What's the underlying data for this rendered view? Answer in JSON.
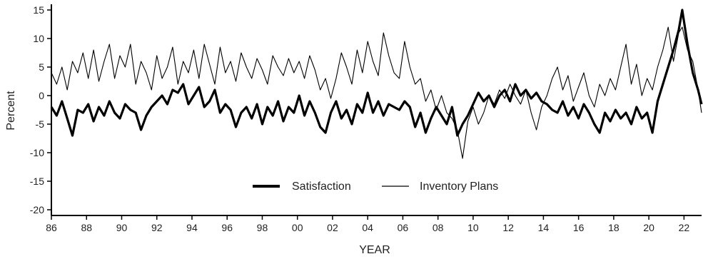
{
  "chart_data": {
    "type": "line",
    "title": "",
    "xlabel": "YEAR",
    "ylabel": "Percent",
    "xlim": [
      1986,
      2023
    ],
    "ylim": [
      -21,
      16
    ],
    "y_ticks": [
      15,
      10,
      5,
      0,
      -5,
      -10,
      -15,
      -20
    ],
    "y_tick_labels": [
      "15",
      "10",
      "5",
      "0",
      "-5",
      "-10",
      "-15",
      "-20"
    ],
    "x_ticks": [
      1986,
      1988,
      1990,
      1992,
      1994,
      1996,
      1998,
      2000,
      2002,
      2004,
      2006,
      2008,
      2010,
      2012,
      2014,
      2016,
      2018,
      2020,
      2022
    ],
    "x_tick_labels": [
      "86",
      "88",
      "90",
      "92",
      "94",
      "96",
      "98",
      "00",
      "02",
      "04",
      "06",
      "08",
      "10",
      "12",
      "14",
      "16",
      "18",
      "20",
      "22"
    ],
    "grid": false,
    "legend_position": "bottom-center",
    "series": [
      {
        "name": "Satisfaction",
        "color": "#000000",
        "style": "thick",
        "x": [
          1986.0,
          1986.3,
          1986.6,
          1986.9,
          1987.2,
          1987.5,
          1987.8,
          1988.1,
          1988.4,
          1988.7,
          1989.0,
          1989.3,
          1989.6,
          1989.9,
          1990.2,
          1990.5,
          1990.8,
          1991.1,
          1991.4,
          1991.7,
          1992.0,
          1992.3,
          1992.6,
          1992.9,
          1993.2,
          1993.5,
          1993.8,
          1994.1,
          1994.4,
          1994.7,
          1995.0,
          1995.3,
          1995.6,
          1995.9,
          1996.2,
          1996.5,
          1996.8,
          1997.1,
          1997.4,
          1997.7,
          1998.0,
          1998.3,
          1998.6,
          1998.9,
          1999.2,
          1999.5,
          1999.8,
          2000.1,
          2000.4,
          2000.7,
          2001.0,
          2001.3,
          2001.6,
          2001.9,
          2002.2,
          2002.5,
          2002.8,
          2003.1,
          2003.4,
          2003.7,
          2004.0,
          2004.3,
          2004.6,
          2004.9,
          2005.2,
          2005.5,
          2005.8,
          2006.1,
          2006.4,
          2006.7,
          2007.0,
          2007.3,
          2007.6,
          2007.9,
          2008.2,
          2008.5,
          2008.8,
          2009.1,
          2009.4,
          2009.7,
          2010.0,
          2010.3,
          2010.6,
          2010.9,
          2011.2,
          2011.5,
          2011.8,
          2012.1,
          2012.4,
          2012.7,
          2013.0,
          2013.3,
          2013.6,
          2013.9,
          2014.2,
          2014.5,
          2014.8,
          2015.1,
          2015.4,
          2015.7,
          2016.0,
          2016.3,
          2016.6,
          2016.9,
          2017.2,
          2017.5,
          2017.8,
          2018.1,
          2018.4,
          2018.7,
          2019.0,
          2019.3,
          2019.6,
          2019.9,
          2020.2,
          2020.5,
          2020.8,
          2021.1,
          2021.4,
          2021.7,
          2021.9,
          2022.2,
          2022.5,
          2022.8,
          2023.0
        ],
        "y": [
          -2.0,
          -3.5,
          -1.0,
          -4.0,
          -7.0,
          -2.5,
          -3.0,
          -1.5,
          -4.5,
          -2.0,
          -3.5,
          -1.0,
          -3.0,
          -4.0,
          -1.5,
          -2.5,
          -3.0,
          -6.0,
          -3.5,
          -2.0,
          -1.0,
          0.0,
          -1.5,
          1.0,
          0.5,
          2.0,
          -1.5,
          0.0,
          1.5,
          -2.0,
          -1.0,
          1.0,
          -3.0,
          -1.5,
          -2.5,
          -5.5,
          -3.0,
          -2.0,
          -4.0,
          -1.5,
          -5.0,
          -2.0,
          -3.5,
          -1.0,
          -4.5,
          -2.0,
          -3.0,
          0.0,
          -3.5,
          -1.0,
          -3.0,
          -5.5,
          -6.5,
          -3.0,
          -1.0,
          -4.0,
          -2.5,
          -5.0,
          -1.5,
          -3.0,
          0.5,
          -3.0,
          -1.0,
          -3.5,
          -1.5,
          -2.0,
          -2.5,
          -1.0,
          -2.0,
          -5.5,
          -3.0,
          -6.5,
          -4.0,
          -2.0,
          -3.5,
          -5.0,
          -2.0,
          -7.0,
          -5.0,
          -3.5,
          -1.5,
          0.5,
          -1.0,
          0.0,
          -2.0,
          0.0,
          1.0,
          -1.0,
          2.0,
          0.0,
          1.0,
          -0.5,
          0.5,
          -1.0,
          -1.5,
          -2.5,
          -3.0,
          -1.0,
          -3.5,
          -2.0,
          -4.0,
          -1.5,
          -3.0,
          -5.0,
          -6.5,
          -3.0,
          -4.5,
          -2.5,
          -4.0,
          -3.0,
          -5.0,
          -2.0,
          -4.0,
          -3.0,
          -6.5,
          -1.0,
          2.0,
          5.0,
          8.0,
          11.5,
          15.0,
          9.0,
          4.0,
          1.0,
          -1.5
        ]
      },
      {
        "name": "Inventory Plans",
        "color": "#000000",
        "style": "thin",
        "x": [
          1986.0,
          1986.3,
          1986.6,
          1986.9,
          1987.2,
          1987.5,
          1987.8,
          1988.1,
          1988.4,
          1988.7,
          1989.0,
          1989.3,
          1989.6,
          1989.9,
          1990.2,
          1990.5,
          1990.8,
          1991.1,
          1991.4,
          1991.7,
          1992.0,
          1992.3,
          1992.6,
          1992.9,
          1993.2,
          1993.5,
          1993.8,
          1994.1,
          1994.4,
          1994.7,
          1995.0,
          1995.3,
          1995.6,
          1995.9,
          1996.2,
          1996.5,
          1996.8,
          1997.1,
          1997.4,
          1997.7,
          1998.0,
          1998.3,
          1998.6,
          1998.9,
          1999.2,
          1999.5,
          1999.8,
          2000.1,
          2000.4,
          2000.7,
          2001.0,
          2001.3,
          2001.6,
          2001.9,
          2002.2,
          2002.5,
          2002.8,
          2003.1,
          2003.4,
          2003.7,
          2004.0,
          2004.3,
          2004.6,
          2004.9,
          2005.2,
          2005.5,
          2005.8,
          2006.1,
          2006.4,
          2006.7,
          2007.0,
          2007.3,
          2007.6,
          2007.9,
          2008.2,
          2008.5,
          2008.8,
          2009.1,
          2009.4,
          2009.7,
          2010.0,
          2010.3,
          2010.6,
          2010.9,
          2011.2,
          2011.5,
          2011.8,
          2012.1,
          2012.4,
          2012.7,
          2013.0,
          2013.3,
          2013.6,
          2013.9,
          2014.2,
          2014.5,
          2014.8,
          2015.1,
          2015.4,
          2015.7,
          2016.0,
          2016.3,
          2016.6,
          2016.9,
          2017.2,
          2017.5,
          2017.8,
          2018.1,
          2018.4,
          2018.7,
          2019.0,
          2019.3,
          2019.6,
          2019.9,
          2020.2,
          2020.5,
          2020.8,
          2021.1,
          2021.4,
          2021.7,
          2021.9,
          2022.2,
          2022.5,
          2022.8,
          2023.0
        ],
        "y": [
          4.0,
          2.0,
          5.0,
          1.0,
          6.0,
          4.0,
          7.5,
          3.0,
          8.0,
          2.5,
          6.0,
          9.0,
          3.0,
          7.0,
          5.0,
          9.0,
          2.0,
          6.0,
          4.0,
          1.0,
          7.0,
          3.0,
          5.0,
          8.5,
          2.0,
          6.0,
          4.0,
          8.0,
          3.0,
          9.0,
          5.5,
          2.0,
          8.5,
          4.0,
          6.0,
          2.5,
          7.5,
          5.0,
          3.0,
          6.5,
          4.5,
          2.0,
          7.0,
          5.0,
          3.5,
          6.5,
          4.0,
          6.0,
          3.0,
          7.0,
          4.5,
          1.0,
          3.0,
          -0.5,
          3.0,
          7.5,
          5.0,
          2.0,
          8.0,
          4.0,
          9.5,
          6.0,
          3.5,
          11.0,
          7.0,
          4.0,
          3.0,
          9.5,
          5.0,
          2.0,
          3.0,
          -1.0,
          1.0,
          -2.5,
          0.0,
          -3.0,
          -4.0,
          -6.0,
          -11.0,
          -4.5,
          -2.0,
          -5.0,
          -3.0,
          0.0,
          -1.5,
          1.0,
          -0.5,
          2.0,
          0.0,
          -1.5,
          1.0,
          -3.0,
          -6.0,
          -2.0,
          0.0,
          3.0,
          5.0,
          1.0,
          3.5,
          -1.0,
          1.5,
          4.0,
          0.0,
          -2.0,
          2.0,
          0.0,
          3.0,
          1.0,
          5.0,
          9.0,
          2.0,
          5.5,
          0.0,
          3.0,
          1.0,
          5.0,
          8.0,
          12.0,
          6.0,
          11.0,
          12.0,
          8.0,
          6.0,
          1.0,
          -3.0
        ]
      }
    ]
  }
}
